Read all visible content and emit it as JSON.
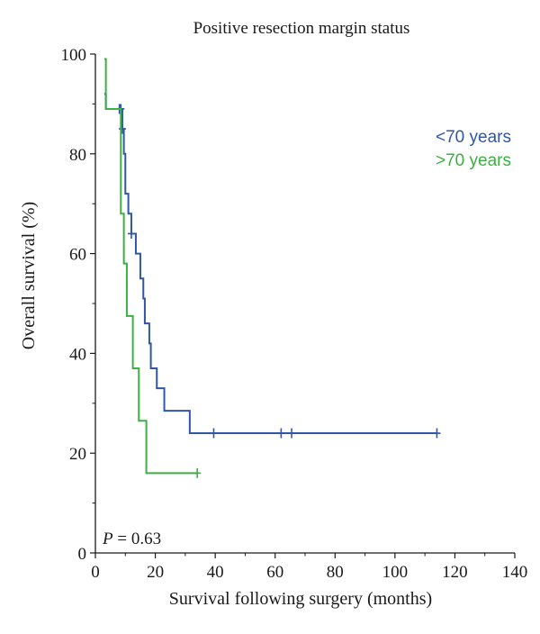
{
  "chart_data": {
    "type": "line",
    "subtype": "kaplan-meier",
    "title": "Positive resection margin status",
    "xlabel": "Survival following surgery (months)",
    "ylabel": "Overall survival (%)",
    "xlim": [
      0,
      140
    ],
    "ylim": [
      0,
      100
    ],
    "x_ticks": [
      "0",
      "20",
      "40",
      "60",
      "80",
      "100",
      "120",
      "140"
    ],
    "x_tick_values": [
      0,
      20,
      40,
      60,
      80,
      100,
      120,
      140
    ],
    "y_ticks": [
      "0",
      "20",
      "40",
      "60",
      "80",
      "100"
    ],
    "y_tick_values": [
      0,
      20,
      40,
      60,
      80,
      100
    ],
    "grid": false,
    "legend_position": "top-right",
    "annotation": {
      "p_label": "P",
      "p_value": " = 0.63"
    },
    "series": [
      {
        "name": "<70 years",
        "color": "#2f56a8",
        "steps": [
          [
            3,
            92
          ],
          [
            3.5,
            89
          ],
          [
            8,
            89
          ],
          [
            9,
            85
          ],
          [
            9.5,
            80
          ],
          [
            10,
            72
          ],
          [
            11,
            68
          ],
          [
            12,
            64
          ],
          [
            13.5,
            60
          ],
          [
            15,
            55
          ],
          [
            16,
            51
          ],
          [
            16.5,
            46
          ],
          [
            18,
            42
          ],
          [
            18.5,
            37
          ],
          [
            20.5,
            33
          ],
          [
            23,
            28.5
          ],
          [
            31.5,
            24
          ],
          [
            114,
            24
          ]
        ],
        "censors": [
          [
            8,
            89
          ],
          [
            8.5,
            89
          ],
          [
            9,
            85
          ],
          [
            12,
            64
          ],
          [
            39.5,
            24
          ],
          [
            62,
            24
          ],
          [
            65.5,
            24
          ],
          [
            114,
            24
          ]
        ]
      },
      {
        "name": ">70 years",
        "color": "#3cb043",
        "steps": [
          [
            3,
            99
          ],
          [
            3.5,
            89
          ],
          [
            7.5,
            89
          ],
          [
            8.5,
            68
          ],
          [
            9.5,
            58
          ],
          [
            10.5,
            47.5
          ],
          [
            12.5,
            37
          ],
          [
            14.5,
            26.5
          ],
          [
            17,
            16
          ],
          [
            34,
            16
          ]
        ],
        "censors": [
          [
            34,
            16
          ]
        ]
      }
    ]
  }
}
